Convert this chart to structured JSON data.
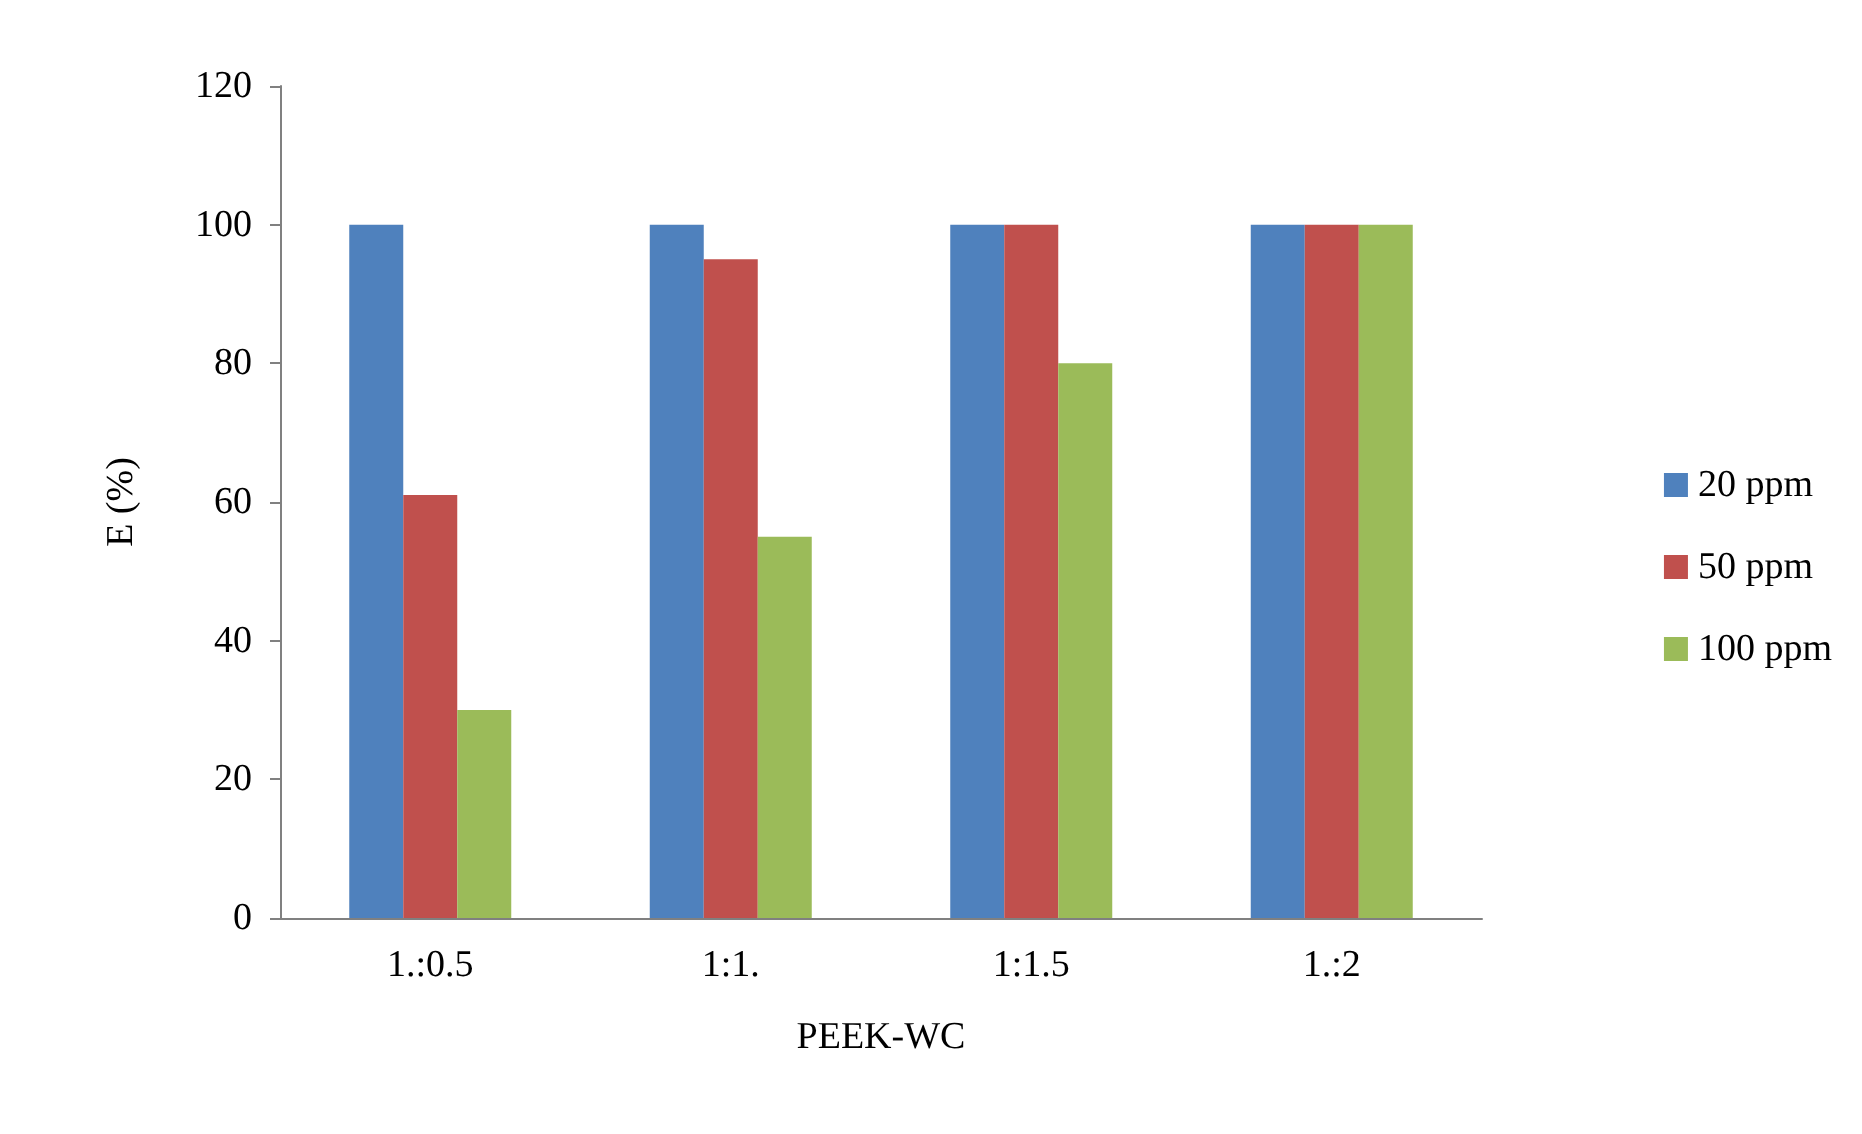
{
  "chart_data": {
    "type": "bar",
    "categories": [
      "1.:0.5",
      "1:1.",
      "1:1.5",
      "1.:2"
    ],
    "series": [
      {
        "name": "20 ppm",
        "color": "#4f81bd",
        "values": [
          100,
          100,
          100,
          100
        ]
      },
      {
        "name": "50 ppm",
        "color": "#c0504d",
        "values": [
          61,
          95,
          100,
          100
        ]
      },
      {
        "name": "100 ppm",
        "color": "#9bbb59",
        "values": [
          30,
          55,
          80,
          100
        ]
      }
    ],
    "xlabel": "PEEK-WC",
    "ylabel": "E (%)",
    "ylim": [
      0,
      120
    ],
    "yticks": [
      0,
      20,
      40,
      60,
      80,
      100,
      120
    ],
    "grid": false,
    "legend": "right"
  }
}
